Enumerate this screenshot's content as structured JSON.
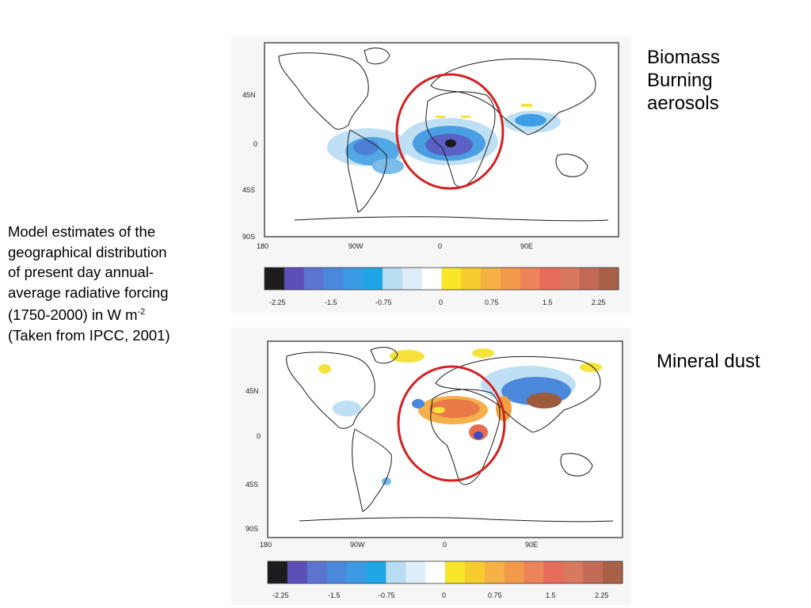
{
  "caption": {
    "lines": [
      "Model estimates of the",
      "geographical distribution",
      "of present day annual-",
      "average radiative forcing",
      "(1750-2000) in W m"
    ],
    "unit_exponent": "-2",
    "last_line": "(Taken from IPCC, 2001)"
  },
  "panels": [
    {
      "title_lines": [
        "Biomass",
        "Burning",
        "aerosols"
      ],
      "lat_labels": [
        "45N",
        "0",
        "45S",
        "90S"
      ],
      "lon_labels": [
        "180",
        "90W",
        "0",
        "90E"
      ],
      "colorbar_ticks": [
        "-2.25",
        "-1.5",
        "-0.75",
        "0",
        "0.75",
        "1.5",
        "2.25"
      ]
    },
    {
      "title_lines": [
        "Mineral dust"
      ],
      "lat_labels": [
        "45N",
        "0",
        "45S",
        "90S"
      ],
      "lon_labels": [
        "180",
        "90W",
        "0",
        "90E"
      ],
      "colorbar_ticks": [
        "-2.25",
        "-1.5",
        "-0.75",
        "0",
        "0.75",
        "1.5",
        "2.25"
      ]
    }
  ],
  "colors": {
    "highlight_circle": "#d42020",
    "colorbar": [
      "#1c1c1c",
      "#5c4fb8",
      "#5a74d0",
      "#4a88dc",
      "#3c9ae4",
      "#20a6e6",
      "#b8dcf2",
      "#ddeefa",
      "#ffffff",
      "#f8e62a",
      "#f6cc2e",
      "#f5b146",
      "#f39a4a",
      "#ee8258",
      "#e86c5c",
      "#d8785c",
      "#c26a55",
      "#a86048"
    ]
  }
}
